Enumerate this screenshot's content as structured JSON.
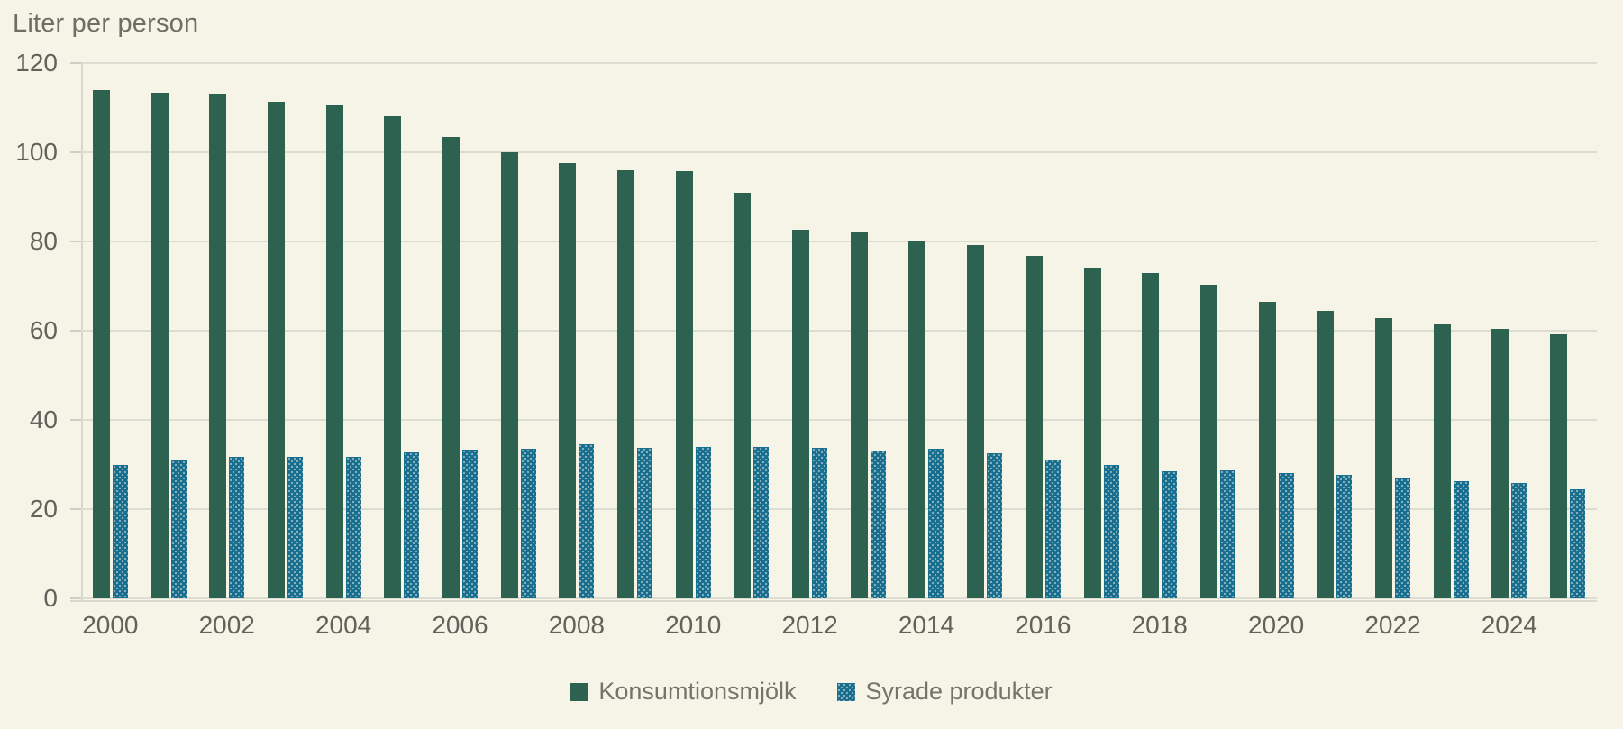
{
  "title": "Liter per person",
  "accent_colors": {
    "milk_green": "#2d6150",
    "soured_blue": "#186f90",
    "background": "#f6f4e6",
    "gridline": "#dddcd2",
    "text_gray": "#62625c"
  },
  "chart_data": {
    "type": "bar",
    "title": "Liter per person",
    "xlabel": "",
    "ylabel": "Liter per person",
    "ylim": [
      0,
      120
    ],
    "ytick_step": 20,
    "yticks": [
      0,
      20,
      40,
      60,
      80,
      100,
      120
    ],
    "grid": true,
    "legend_position": "bottom",
    "categories": [
      2000,
      2001,
      2002,
      2003,
      2004,
      2005,
      2006,
      2007,
      2008,
      2009,
      2010,
      2011,
      2012,
      2013,
      2014,
      2015,
      2016,
      2017,
      2018,
      2019,
      2020,
      2021,
      2022,
      2023,
      2024,
      2025
    ],
    "x_tick_labels": [
      "2000",
      "2002",
      "2004",
      "2006",
      "2008",
      "2010",
      "2012",
      "2014",
      "2016",
      "2018",
      "2020",
      "2022",
      "2024"
    ],
    "series": [
      {
        "name": "Konsumtionsmjölk",
        "color": "#2d6150",
        "pattern": "solid",
        "values": [
          114,
          113.4,
          113.1,
          111.4,
          110.5,
          108.1,
          103.4,
          100,
          97.6,
          96,
          95.8,
          91,
          82.7,
          82.3,
          80.3,
          79.2,
          76.7,
          74.2,
          72.9,
          70.4,
          66.5,
          64.4,
          62.9,
          61.4,
          60.4,
          59.2
        ]
      },
      {
        "name": "Syrade produkter",
        "color": "#186f90",
        "pattern": "dotted",
        "values": [
          29.9,
          31,
          31.7,
          31.7,
          31.7,
          32.7,
          33.3,
          33.5,
          34.6,
          33.7,
          33.9,
          33.9,
          33.7,
          33.2,
          33.6,
          32.5,
          31.2,
          29.9,
          28.4,
          28.7,
          28,
          27.6,
          26.9,
          26.2,
          25.8,
          24.5
        ]
      }
    ]
  },
  "legend": {
    "items": [
      {
        "label": "Konsumtionsmjölk"
      },
      {
        "label": "Syrade produkter"
      }
    ]
  }
}
